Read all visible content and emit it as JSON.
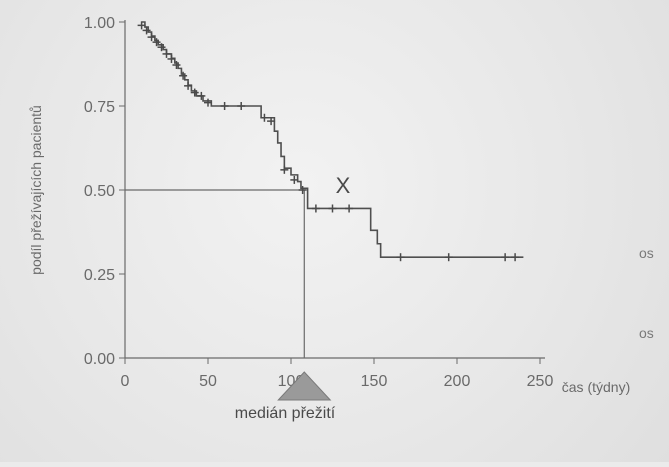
{
  "chart_data": {
    "type": "line",
    "title": "",
    "xlabel": "čas (týdny)",
    "ylabel": "podíl přežívajících pacientů",
    "xlim": [
      0,
      250
    ],
    "ylim": [
      0,
      1
    ],
    "x_ticks": [
      0,
      50,
      100,
      150,
      200,
      250
    ],
    "y_ticks": [
      "0.00",
      "0.25",
      "0.50",
      "0.75",
      "1.00"
    ],
    "grid": false,
    "step_curve": [
      [
        10,
        1.0
      ],
      [
        12,
        0.985
      ],
      [
        14,
        0.97
      ],
      [
        16,
        0.958
      ],
      [
        18,
        0.945
      ],
      [
        20,
        0.932
      ],
      [
        23,
        0.918
      ],
      [
        25,
        0.905
      ],
      [
        28,
        0.892
      ],
      [
        30,
        0.878
      ],
      [
        32,
        0.862
      ],
      [
        34,
        0.845
      ],
      [
        36,
        0.828
      ],
      [
        38,
        0.812
      ],
      [
        40,
        0.795
      ],
      [
        43,
        0.78
      ],
      [
        47,
        0.765
      ],
      [
        52,
        0.75
      ],
      [
        80,
        0.75
      ],
      [
        82,
        0.715
      ],
      [
        88,
        0.715
      ],
      [
        90,
        0.675
      ],
      [
        92,
        0.64
      ],
      [
        94,
        0.6
      ],
      [
        96,
        0.565
      ],
      [
        100,
        0.545
      ],
      [
        104,
        0.525
      ],
      [
        106,
        0.505
      ],
      [
        110,
        0.445
      ],
      [
        145,
        0.445
      ],
      [
        148,
        0.38
      ],
      [
        152,
        0.34
      ],
      [
        154,
        0.3
      ],
      [
        240,
        0.3
      ]
    ],
    "censored_points": [
      [
        10,
        0.99
      ],
      [
        13,
        0.975
      ],
      [
        16,
        0.955
      ],
      [
        19,
        0.94
      ],
      [
        22,
        0.925
      ],
      [
        25,
        0.905
      ],
      [
        28,
        0.89
      ],
      [
        31,
        0.872
      ],
      [
        35,
        0.84
      ],
      [
        38,
        0.81
      ],
      [
        42,
        0.79
      ],
      [
        46,
        0.78
      ],
      [
        50,
        0.76
      ],
      [
        60,
        0.75
      ],
      [
        70,
        0.75
      ],
      [
        84,
        0.715
      ],
      [
        88,
        0.705
      ],
      [
        96,
        0.56
      ],
      [
        102,
        0.53
      ],
      [
        107,
        0.5
      ],
      [
        115,
        0.445
      ],
      [
        125,
        0.445
      ],
      [
        135,
        0.445
      ],
      [
        166,
        0.3
      ],
      [
        195,
        0.3
      ],
      [
        229,
        0.3
      ],
      [
        235,
        0.3
      ]
    ],
    "median_line": {
      "y": 0.5,
      "x": 108
    },
    "annotations": {
      "x_mark": "X",
      "median_label": "medián přežití",
      "side_labels": [
        "os",
        "os"
      ]
    }
  }
}
